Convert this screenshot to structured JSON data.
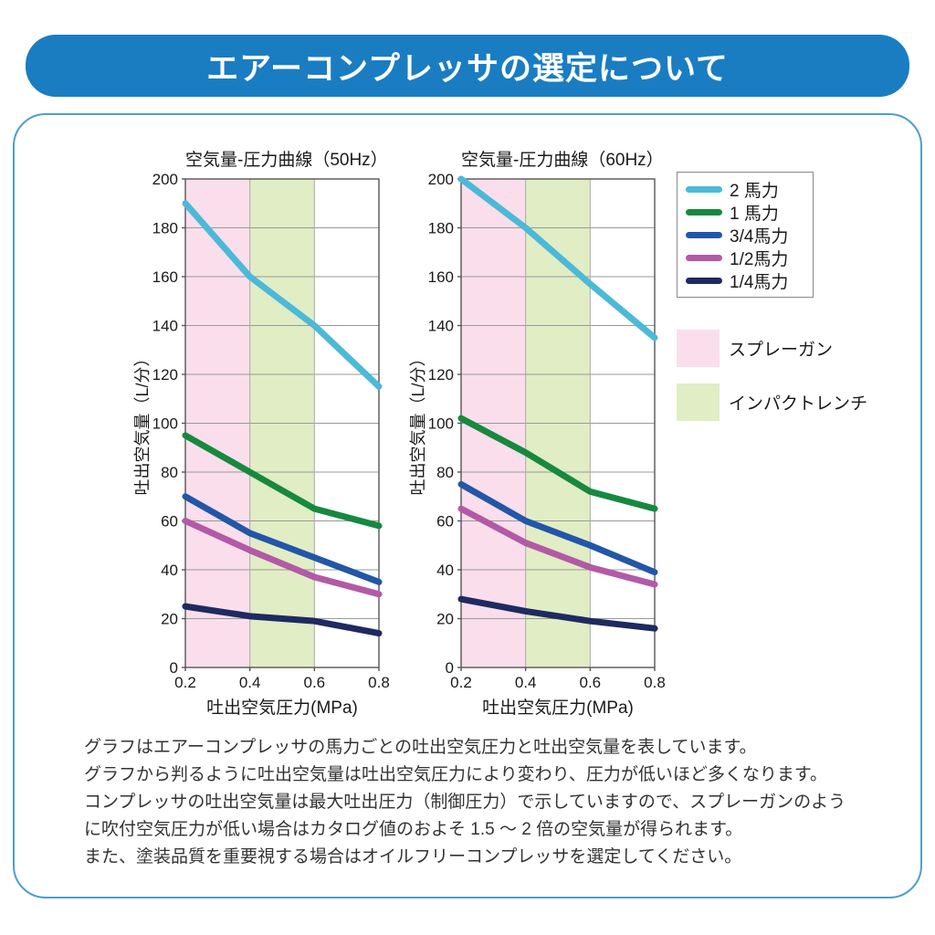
{
  "page": {
    "title": "エアーコンプレッサの選定について"
  },
  "colors": {
    "banner_blue": "#1a7dc2",
    "panel_border_blue": "#4d9ecd",
    "spray_gun_pink": "#fadeeb",
    "impact_wrench_green": "#e1edc4",
    "hp2_cyan": "#4cb9d8",
    "hp1_green": "#17893f",
    "hp34_blue": "#2356a8",
    "hp12_magenta": "#b25aa6",
    "hp14_navy": "#1e2a60"
  },
  "legend": {
    "series": [
      {
        "label": "2 馬力",
        "color": "#4cb9d8"
      },
      {
        "label": "1 馬力",
        "color": "#17893f"
      },
      {
        "label": "3/4馬力",
        "color": "#2356a8"
      },
      {
        "label": "1/2馬力",
        "color": "#b25aa6"
      },
      {
        "label": "1/4馬力",
        "color": "#1e2a60"
      }
    ],
    "bands": [
      {
        "label": "スプレーガン",
        "color": "#fadeeb"
      },
      {
        "label": "インパクトレンチ",
        "color": "#e1edc4"
      }
    ]
  },
  "chart_data": [
    {
      "type": "line",
      "title": "空気量-圧力曲線（50Hz）",
      "xlabel": "吐出空気圧力(MPa)",
      "ylabel": "吐出空気量（L/分）",
      "x": [
        0.2,
        0.4,
        0.6,
        0.8
      ],
      "xticks": [
        "0.2",
        "0.4",
        "0.6",
        "0.8"
      ],
      "yticks": [
        0,
        20,
        40,
        60,
        80,
        100,
        120,
        140,
        160,
        180,
        200
      ],
      "xlim": [
        0.2,
        0.8
      ],
      "ylim": [
        0,
        200
      ],
      "grid": true,
      "bands": [
        {
          "label": "スプレーガン",
          "from": 0.2,
          "to": 0.4,
          "color": "#fadeeb"
        },
        {
          "label": "インパクトレンチ",
          "from": 0.4,
          "to": 0.6,
          "color": "#e1edc4"
        }
      ],
      "series": [
        {
          "name": "2 馬力",
          "color": "#4cb9d8",
          "values": [
            190,
            160,
            140,
            115
          ]
        },
        {
          "name": "1 馬力",
          "color": "#17893f",
          "values": [
            95,
            80,
            65,
            58
          ]
        },
        {
          "name": "3/4馬力",
          "color": "#2356a8",
          "values": [
            70,
            55,
            45,
            35
          ]
        },
        {
          "name": "1/2馬力",
          "color": "#b25aa6",
          "values": [
            60,
            48,
            37,
            30
          ]
        },
        {
          "name": "1/4馬力",
          "color": "#1e2a60",
          "values": [
            25,
            21,
            19,
            14
          ]
        }
      ]
    },
    {
      "type": "line",
      "title": "空気量-圧力曲線（60Hz）",
      "xlabel": "吐出空気圧力(MPa)",
      "ylabel": "吐出空気量（L/分）",
      "x": [
        0.2,
        0.4,
        0.6,
        0.8
      ],
      "xticks": [
        "0.2",
        "0.4",
        "0.6",
        "0.8"
      ],
      "yticks": [
        0,
        20,
        40,
        60,
        80,
        100,
        120,
        140,
        160,
        180,
        200
      ],
      "xlim": [
        0.2,
        0.8
      ],
      "ylim": [
        0,
        200
      ],
      "grid": true,
      "bands": [
        {
          "label": "スプレーガン",
          "from": 0.2,
          "to": 0.4,
          "color": "#fadeeb"
        },
        {
          "label": "インパクトレンチ",
          "from": 0.4,
          "to": 0.6,
          "color": "#e1edc4"
        }
      ],
      "series": [
        {
          "name": "2 馬力",
          "color": "#4cb9d8",
          "values": [
            200,
            180,
            157,
            135
          ]
        },
        {
          "name": "1 馬力",
          "color": "#17893f",
          "values": [
            102,
            88,
            72,
            65
          ]
        },
        {
          "name": "3/4馬力",
          "color": "#2356a8",
          "values": [
            75,
            60,
            50,
            39
          ]
        },
        {
          "name": "1/2馬力",
          "color": "#b25aa6",
          "values": [
            65,
            51,
            41,
            34
          ]
        },
        {
          "name": "1/4馬力",
          "color": "#1e2a60",
          "values": [
            28,
            23,
            19,
            16
          ]
        }
      ]
    }
  ],
  "description": {
    "lines": [
      "グラフはエアーコンプレッサの馬力ごとの吐出空気圧力と吐出空気量を表しています。",
      "グラフから判るように吐出空気量は吐出空気圧力により変わり、圧力が低いほど多くなります。",
      "コンプレッサの吐出空気量は最大吐出圧力（制御圧力）で示していますので、スプレーガンのよう",
      "に吹付空気圧力が低い場合はカタログ値のおよそ 1.5 ～ 2 倍の空気量が得られます。",
      "また、塗装品質を重要視する場合はオイルフリーコンプレッサを選定してください。"
    ]
  }
}
